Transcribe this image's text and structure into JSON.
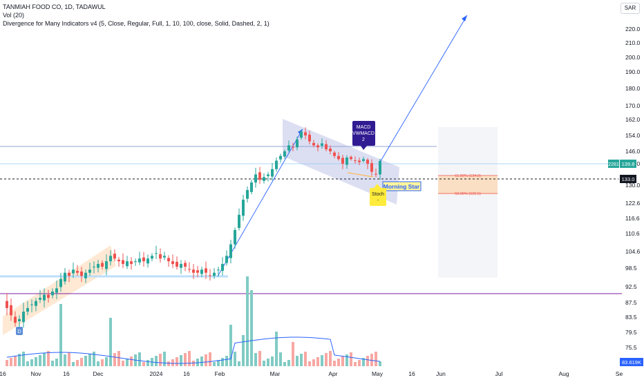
{
  "header": {
    "title": "TANMIAH FOOD CO, 1D, TADAWUL",
    "vol_label": "Vol (20)",
    "indicator_label": "Divergence for Many Indicators v4 (5, Close, Regular, Full, 1, 10, 100, close, Solid, Dashed, 2, 1)"
  },
  "currency": "SAR",
  "price_axis": {
    "min": 73,
    "max": 225,
    "ticks": [
      "75.5",
      "79.5",
      "83.5",
      "87.5",
      "92.5",
      "98.5",
      "104.6",
      "110.6",
      "116.6",
      "122.6",
      "130.0",
      "138.0",
      "146.0",
      "154.0",
      "162.0",
      "170.0",
      "180.0",
      "190.0",
      "200.0",
      "210.0",
      "220.0"
    ]
  },
  "time_axis": {
    "labels": [
      "16",
      "Nov",
      "16",
      "Dec",
      "2024",
      "16",
      "Feb",
      "Mar",
      "Apr",
      "May",
      "16",
      "Jun",
      "Jul",
      "Aug",
      "Se"
    ]
  },
  "price_badges": {
    "last_volume": "2281",
    "last_price": "139.8",
    "line_price": "133.0",
    "volume_value": "83.619K"
  },
  "annotations": {
    "macd_box": [
      "MACD",
      "VWMACD",
      "2"
    ],
    "morning_star": "Morning Star",
    "stoch": "Stoch",
    "stoch_sub": "-",
    "divergence_marker": "D",
    "fib_618": "61.80% (134.0)",
    "fib_50": "50.00% (126.5)"
  },
  "colors": {
    "up": "#26a69a",
    "down": "#ef5350",
    "trend_line": "#2962ff",
    "horizontal_line": "#90a4d6",
    "purple_line": "#7b1fa2",
    "dashed_line": "#131722",
    "channel_blue": "#c5cae9",
    "channel_orange": "#ffe0c2",
    "macd_box": "#311b92",
    "morning_star_bg": "#fff59d",
    "stoch_bg": "#ffeb3b",
    "badge_green": "#26a69a",
    "badge_blue": "#2962ff"
  },
  "chart_data": {
    "type": "candlestick",
    "period": "1D",
    "key_levels": {
      "resistance": 148.5,
      "support_dashed": 133.0,
      "last_close_line": 139.8,
      "purple_support": 90.5,
      "blue_support": 96.5
    },
    "last_close": 139.8,
    "last_volume_k": 83.619,
    "fib_levels": [
      {
        "label": "61.80%",
        "price": 134.0
      },
      {
        "label": "50.00%",
        "price": 126.5
      }
    ],
    "projection": {
      "from": 139.8,
      "to": 222.0
    }
  }
}
